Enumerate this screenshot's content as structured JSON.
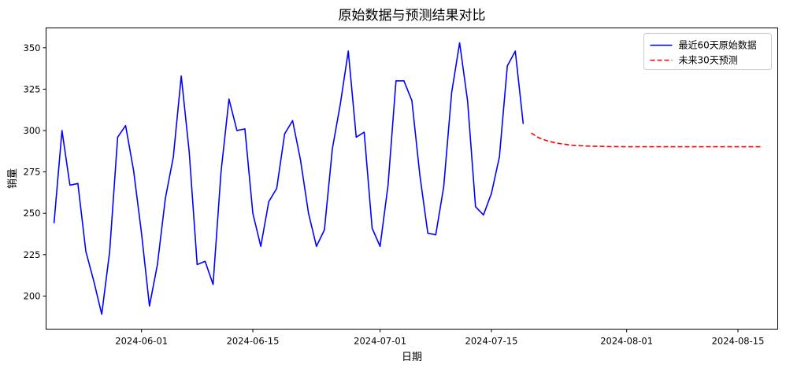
{
  "chart_data": {
    "type": "line",
    "title": "原始数据与预测结果对比",
    "xlabel": "日期",
    "ylabel": "销量",
    "xlim": [
      "2024-05-20",
      "2024-08-20"
    ],
    "ylim": [
      180,
      362
    ],
    "x_ticks": [
      "2024-06-01",
      "2024-06-15",
      "2024-07-01",
      "2024-07-15",
      "2024-08-01",
      "2024-08-15"
    ],
    "y_ticks": [
      200,
      225,
      250,
      275,
      300,
      325,
      350
    ],
    "grid": false,
    "legend_position": "top-right",
    "series": [
      {
        "name": "最近60天原始数据",
        "color": "#0000ff",
        "line_style": "solid",
        "start_date": "2024-05-21",
        "values": [
          244,
          300,
          267,
          268,
          227,
          209,
          189,
          227,
          296,
          303,
          276,
          238,
          194,
          219,
          259,
          284,
          333,
          287,
          219,
          221,
          207,
          275,
          319,
          300,
          301,
          250,
          230,
          257,
          265,
          298,
          306,
          282,
          250,
          230,
          240,
          289,
          316,
          348,
          296,
          299,
          241,
          230,
          267,
          330,
          330,
          318,
          273,
          238,
          237,
          266,
          323,
          353,
          318,
          254,
          249,
          262,
          284,
          339,
          348,
          304
        ]
      },
      {
        "name": "未来30天预测",
        "color": "#ff0000",
        "line_style": "dashed",
        "start_date": "2024-07-20",
        "values": [
          298.5,
          295.5,
          293.8,
          292.6,
          291.8,
          291.2,
          290.9,
          290.6,
          290.5,
          290.4,
          290.3,
          290.3,
          290.2,
          290.2,
          290.2,
          290.2,
          290.2,
          290.2,
          290.2,
          290.2,
          290.2,
          290.2,
          290.2,
          290.2,
          290.2,
          290.2,
          290.2,
          290.2,
          290.2,
          290.2
        ]
      }
    ]
  }
}
